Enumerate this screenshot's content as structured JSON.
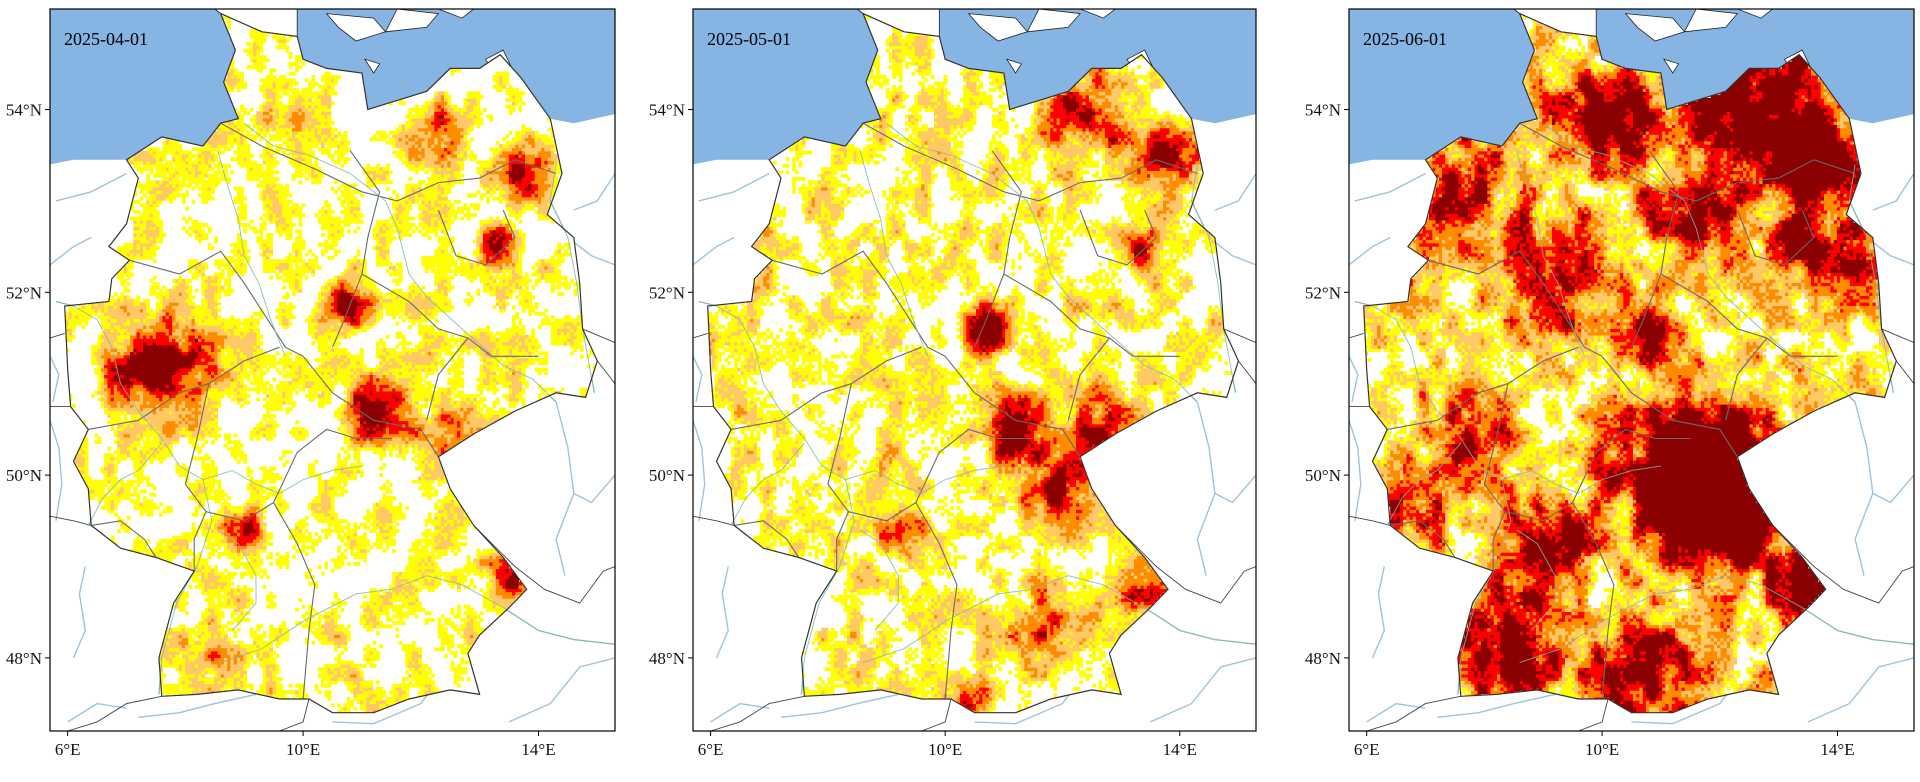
{
  "figure": {
    "panels": [
      {
        "date": "2025-04-01",
        "intensity": 0.45,
        "lat_ticks": [
          "54°N",
          "52°N",
          "50°N",
          "48°N"
        ],
        "lon_ticks": [
          "6°E",
          "10°E",
          "14°E"
        ]
      },
      {
        "date": "2025-05-01",
        "intensity": 0.55,
        "lat_ticks": [
          "54°N",
          "52°N",
          "50°N",
          "48°N"
        ],
        "lon_ticks": [
          "6°E",
          "10°E",
          "14°E"
        ]
      },
      {
        "date": "2025-06-01",
        "intensity": 0.85,
        "lat_ticks": [
          "54°N",
          "52°N",
          "50°N",
          "48°N"
        ],
        "lon_ticks": [
          "6°E",
          "10°E",
          "14°E"
        ]
      }
    ],
    "map_extent": {
      "lon_min": 5.7,
      "lon_max": 15.3,
      "lat_min": 47.2,
      "lat_max": 55.1
    },
    "lat_tick_values": [
      54,
      52,
      50,
      48
    ],
    "lon_tick_values": [
      6,
      10,
      14
    ],
    "colors": {
      "sea": "#86b4e3",
      "land_outside": "#ffffff",
      "rivers": "#9ec3dc",
      "borders": "#333333",
      "state_lines": "#6a6a6a",
      "class_colors": [
        "#ffffff",
        "#ffff00",
        "#ffc866",
        "#ff8c00",
        "#ff0000",
        "#8b0000"
      ]
    }
  }
}
